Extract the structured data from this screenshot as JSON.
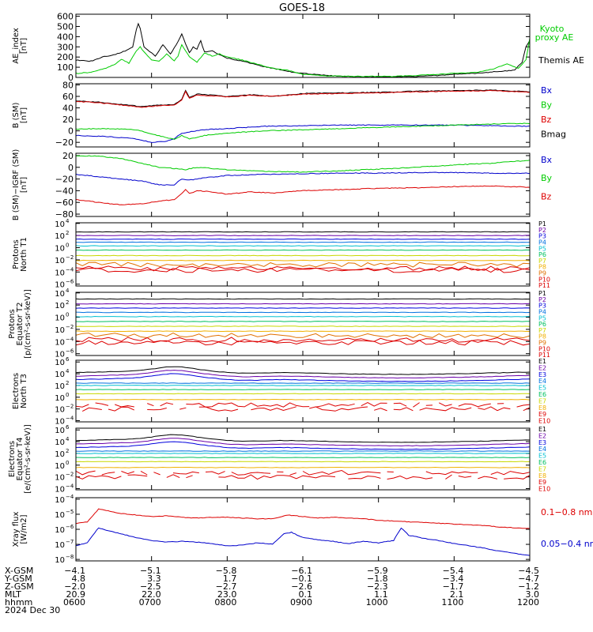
{
  "title": "GOES-18",
  "chart_data": [
    {
      "type": "line",
      "id": "ae",
      "ylabel": [
        "AE_index",
        "[nT]"
      ],
      "yticks": [
        "600",
        "500",
        "400",
        "300",
        "200",
        "100",
        "0"
      ],
      "ylim": [
        0,
        620
      ],
      "legend": [
        {
          "label": "Kyoto",
          "color": "#00cc00"
        },
        {
          "label": "proxy AE",
          "color": "#00cc00"
        },
        {
          "label": "Themis AE",
          "color": "#000000"
        }
      ],
      "series": [
        {
          "name": "Themis AE",
          "color": "#000000",
          "x": [
            6.0,
            6.2,
            6.35,
            6.5,
            6.65,
            6.75,
            6.82,
            6.85,
            6.9,
            7.0,
            7.05,
            7.15,
            7.25,
            7.35,
            7.4,
            7.45,
            7.5,
            7.55,
            7.6,
            7.65,
            7.7,
            7.8,
            7.9,
            8.0,
            8.2,
            8.4,
            8.6,
            8.8,
            9.0,
            9.3,
            9.6,
            9.9,
            10.2,
            10.5,
            10.8,
            11.0,
            11.3,
            11.6,
            11.8,
            11.9,
            11.95,
            12.0
          ],
          "y": [
            170,
            160,
            200,
            220,
            260,
            300,
            540,
            480,
            300,
            240,
            210,
            320,
            230,
            350,
            430,
            330,
            240,
            300,
            280,
            360,
            250,
            260,
            220,
            190,
            160,
            120,
            90,
            60,
            40,
            20,
            10,
            5,
            5,
            10,
            20,
            30,
            40,
            60,
            70,
            150,
            300,
            360
          ]
        },
        {
          "name": "Kyoto proxy AE",
          "color": "#00cc00",
          "x": [
            6.0,
            6.2,
            6.35,
            6.5,
            6.6,
            6.7,
            6.8,
            6.85,
            6.9,
            7.0,
            7.1,
            7.2,
            7.3,
            7.35,
            7.4,
            7.5,
            7.6,
            7.7,
            7.8,
            7.9,
            8.0,
            8.2,
            8.4,
            8.6,
            8.8,
            9.0,
            9.3,
            9.6,
            9.9,
            10.2,
            10.5,
            10.8,
            11.0,
            11.3,
            11.5,
            11.7,
            11.85,
            11.95,
            12.0
          ],
          "y": [
            40,
            50,
            80,
            120,
            180,
            140,
            260,
            300,
            250,
            170,
            160,
            230,
            160,
            210,
            320,
            200,
            150,
            240,
            210,
            230,
            200,
            170,
            130,
            90,
            70,
            30,
            15,
            10,
            10,
            10,
            20,
            30,
            40,
            50,
            80,
            130,
            90,
            170,
            380
          ]
        }
      ]
    },
    {
      "type": "line",
      "id": "bsm",
      "ylabel": [
        "B (SM)",
        "[nT]"
      ],
      "yticks": [
        "80",
        "60",
        "40",
        "20",
        "0",
        "−20"
      ],
      "ylim": [
        -28,
        82
      ],
      "legend": [
        {
          "label": "Bx",
          "color": "#0000cc"
        },
        {
          "label": "By",
          "color": "#00cc00"
        },
        {
          "label": "Bz",
          "color": "#dd0000"
        },
        {
          "label": "Bmag",
          "color": "#000000"
        }
      ],
      "series": [
        {
          "name": "Bmag",
          "color": "#000000",
          "x": [
            6.0,
            6.3,
            6.6,
            6.9,
            7.1,
            7.3,
            7.4,
            7.45,
            7.5,
            7.6,
            7.8,
            8.0,
            8.3,
            8.6,
            9.0,
            9.5,
            10.0,
            10.5,
            11.0,
            11.5,
            12.0
          ],
          "y": [
            52,
            50,
            46,
            42,
            45,
            46,
            55,
            70,
            58,
            64,
            62,
            60,
            63,
            60,
            65,
            66,
            67,
            69,
            70,
            71,
            68
          ]
        },
        {
          "name": "Bz",
          "color": "#dd0000",
          "x": [
            6.0,
            6.3,
            6.6,
            6.9,
            7.1,
            7.3,
            7.4,
            7.45,
            7.5,
            7.6,
            7.8,
            8.0,
            8.3,
            8.6,
            9.0,
            9.5,
            10.0,
            10.5,
            11.0,
            11.5,
            12.0
          ],
          "y": [
            51,
            49,
            45,
            41,
            44,
            45,
            53,
            68,
            57,
            62,
            61,
            59,
            62,
            60,
            64,
            65,
            66,
            68,
            69,
            70,
            67
          ]
        },
        {
          "name": "Bx",
          "color": "#0000cc",
          "x": [
            6.0,
            6.4,
            6.8,
            7.0,
            7.2,
            7.3,
            7.4,
            7.5,
            7.7,
            8.0,
            8.5,
            9.0,
            9.5,
            10.0,
            10.5,
            11.0,
            11.5,
            12.0
          ],
          "y": [
            -8,
            -10,
            -14,
            -20,
            -18,
            -14,
            -4,
            -2,
            2,
            4,
            8,
            9,
            10,
            10,
            10,
            10,
            9,
            8
          ]
        },
        {
          "name": "By",
          "color": "#00cc00",
          "x": [
            6.0,
            6.4,
            6.8,
            7.0,
            7.2,
            7.3,
            7.4,
            7.5,
            7.7,
            8.0,
            8.5,
            9.0,
            9.5,
            10.0,
            10.5,
            11.0,
            11.5,
            12.0
          ],
          "y": [
            3,
            4,
            2,
            -5,
            -12,
            -15,
            -8,
            -14,
            -8,
            -4,
            0,
            2,
            4,
            6,
            8,
            10,
            12,
            13
          ]
        }
      ]
    },
    {
      "type": "line",
      "id": "bigrf",
      "ylabel": [
        "B (SM)−IGRF (SM)",
        "[nT]"
      ],
      "yticks": [
        "20",
        "0",
        "−20",
        "−40",
        "−60",
        "−80"
      ],
      "ylim": [
        -84,
        24
      ],
      "legend": [
        {
          "label": "Bx",
          "color": "#0000cc"
        },
        {
          "label": "By",
          "color": "#00cc00"
        },
        {
          "label": "Bz",
          "color": "#dd0000"
        }
      ],
      "series": [
        {
          "name": "By",
          "color": "#00cc00",
          "x": [
            6.0,
            6.3,
            6.6,
            6.9,
            7.1,
            7.3,
            7.45,
            7.6,
            7.8,
            8.0,
            8.5,
            9.0,
            9.5,
            10.0,
            10.5,
            11.0,
            11.5,
            12.0
          ],
          "y": [
            20,
            19,
            15,
            6,
            0,
            -2,
            -4,
            0,
            -2,
            -4,
            -7,
            -8,
            -6,
            -3,
            0,
            4,
            7,
            12
          ]
        },
        {
          "name": "Bx",
          "color": "#0000cc",
          "x": [
            6.0,
            6.3,
            6.6,
            6.9,
            7.1,
            7.3,
            7.4,
            7.5,
            7.7,
            8.0,
            8.5,
            9.0,
            9.5,
            10.0,
            10.5,
            11.0,
            11.5,
            12.0
          ],
          "y": [
            -12,
            -16,
            -20,
            -24,
            -30,
            -30,
            -20,
            -22,
            -18,
            -14,
            -12,
            -11,
            -10,
            -10,
            -9,
            -9,
            -10,
            -10
          ]
        },
        {
          "name": "Bz",
          "color": "#dd0000",
          "x": [
            6.0,
            6.3,
            6.6,
            6.9,
            7.1,
            7.3,
            7.4,
            7.45,
            7.5,
            7.6,
            7.8,
            8.0,
            8.3,
            8.6,
            9.0,
            9.5,
            10.0,
            10.5,
            11.0,
            11.5,
            12.0
          ],
          "y": [
            -55,
            -60,
            -64,
            -62,
            -58,
            -55,
            -45,
            -38,
            -45,
            -40,
            -42,
            -46,
            -42,
            -44,
            -40,
            -38,
            -36,
            -35,
            -33,
            -32,
            -34
          ]
        }
      ]
    },
    {
      "type": "line",
      "id": "pn",
      "log": true,
      "ylabel": [
        "Protons",
        "North T1"
      ],
      "ylim_exp": [
        -6.3,
        4.1
      ],
      "yticks_exp": [
        4,
        2,
        0,
        -2,
        -4,
        -6
      ],
      "legend": [
        {
          "label": "P1",
          "color": "#000000"
        },
        {
          "label": "P2",
          "color": "#6a00a8"
        },
        {
          "label": "P3",
          "color": "#0000dd"
        },
        {
          "label": "P4",
          "color": "#0070e0"
        },
        {
          "label": "P5",
          "color": "#00c0d0"
        },
        {
          "label": "P6",
          "color": "#00c060"
        },
        {
          "label": "P7",
          "color": "#c8d800"
        },
        {
          "label": "P8",
          "color": "#f0b000"
        },
        {
          "label": "P9",
          "color": "#e07000"
        },
        {
          "label": "P10",
          "color": "#dd0000"
        },
        {
          "label": "P11",
          "color": "#dd0000"
        }
      ],
      "levels": [
        2.6,
        2.0,
        1.4,
        0.9,
        0.3,
        -0.4,
        -1.3,
        -2.1,
        -2.8,
        -3.4,
        -3.7
      ],
      "noisy_from": 8
    },
    {
      "type": "line",
      "id": "pe",
      "log": true,
      "ylabel": [
        "Protons",
        "Equator T2",
        "[p/(cm²-s-sr-keV)]"
      ],
      "ylim_exp": [
        -6.3,
        4.1
      ],
      "yticks_exp": [
        4,
        2,
        0,
        -2,
        -4,
        -6
      ],
      "legend": [
        {
          "label": "P1",
          "color": "#000000"
        },
        {
          "label": "P2",
          "color": "#6a00a8"
        },
        {
          "label": "P3",
          "color": "#0000dd"
        },
        {
          "label": "P4",
          "color": "#0070e0"
        },
        {
          "label": "P5",
          "color": "#00c0d0"
        },
        {
          "label": "P6",
          "color": "#00c060"
        },
        {
          "label": "P7",
          "color": "#c8d800"
        },
        {
          "label": "P8",
          "color": "#f0b000"
        },
        {
          "label": "P9",
          "color": "#e07000"
        },
        {
          "label": "P10",
          "color": "#dd0000"
        },
        {
          "label": "P11",
          "color": "#dd0000"
        }
      ],
      "levels": [
        3.0,
        2.2,
        1.5,
        0.8,
        0.1,
        -0.7,
        -1.5,
        -2.3,
        -3.0,
        -3.7,
        -4.2
      ],
      "noisy_from": 8
    },
    {
      "type": "line",
      "id": "en",
      "log": true,
      "ylabel": [
        "Electrons",
        "North T3"
      ],
      "ylim_exp": [
        -4.2,
        6.3
      ],
      "yticks_exp": [
        6,
        4,
        2,
        0,
        -2,
        -4
      ],
      "legend": [
        {
          "label": "E1",
          "color": "#000000"
        },
        {
          "label": "E2",
          "color": "#6a00a8"
        },
        {
          "label": "E3",
          "color": "#0000dd"
        },
        {
          "label": "E4",
          "color": "#0070e0"
        },
        {
          "label": "E5",
          "color": "#00c0d0"
        },
        {
          "label": "E6",
          "color": "#00c060"
        },
        {
          "label": "E7",
          "color": "#c8d800"
        },
        {
          "label": "E8",
          "color": "#f0b000"
        },
        {
          "label": "E9",
          "color": "#dd0000"
        },
        {
          "label": "E10",
          "color": "#dd0000"
        }
      ],
      "levels": [
        4.2,
        3.6,
        3.0,
        2.4,
        2.0,
        1.3,
        0.6,
        -0.4,
        -1.3,
        -2.0
      ],
      "noisy_from": 8
    },
    {
      "type": "line",
      "id": "ee",
      "log": true,
      "ylabel": [
        "Electrons",
        "Equator T4",
        "[e/(cm²-s-sr-keV)]"
      ],
      "ylim_exp": [
        -4.2,
        6.3
      ],
      "yticks_exp": [
        6,
        4,
        2,
        0,
        -2,
        -4
      ],
      "legend": [
        {
          "label": "E1",
          "color": "#000000"
        },
        {
          "label": "E2",
          "color": "#6a00a8"
        },
        {
          "label": "E3",
          "color": "#0000dd"
        },
        {
          "label": "E4",
          "color": "#0070e0"
        },
        {
          "label": "E5",
          "color": "#00c0d0"
        },
        {
          "label": "E6",
          "color": "#00c060"
        },
        {
          "label": "E7",
          "color": "#c8d800"
        },
        {
          "label": "E8",
          "color": "#f0b000"
        },
        {
          "label": "E9",
          "color": "#dd0000"
        },
        {
          "label": "E10",
          "color": "#dd0000"
        }
      ],
      "levels": [
        4.2,
        3.6,
        3.0,
        2.4,
        2.0,
        1.3,
        0.6,
        -0.4,
        -1.3,
        -2.0
      ],
      "noisy_from": 8
    },
    {
      "type": "line",
      "id": "xray",
      "log": true,
      "ylabel": [
        "Xray  flux",
        "[W/m2]"
      ],
      "ylim_exp": [
        -8.1,
        -3.9
      ],
      "yticks_exp": [
        -4,
        -5,
        -6,
        -7,
        -8
      ],
      "legend": [
        {
          "label": "0.1−0.8 nm",
          "color": "#dd0000"
        },
        {
          "label": "0.05−0.4 nm",
          "color": "#0000cc"
        }
      ],
      "series": [
        {
          "name": "0.1−0.8 nm",
          "color": "#dd0000",
          "x": [
            6.0,
            6.15,
            6.3,
            6.4,
            6.6,
            6.8,
            7.0,
            7.2,
            7.4,
            7.6,
            7.8,
            8.0,
            8.2,
            8.4,
            8.6,
            8.8,
            9.0,
            9.2,
            9.4,
            9.6,
            9.8,
            10.0,
            10.2,
            10.4,
            10.6,
            10.8,
            11.0,
            11.2,
            11.4,
            11.6,
            11.8,
            12.0
          ],
          "y": [
            -5.6,
            -5.5,
            -4.65,
            -4.75,
            -4.95,
            -5.05,
            -5.15,
            -5.1,
            -5.2,
            -5.25,
            -5.2,
            -5.2,
            -5.25,
            -5.3,
            -5.3,
            -5.05,
            -5.15,
            -5.25,
            -5.2,
            -5.25,
            -5.3,
            -5.4,
            -5.45,
            -5.5,
            -5.55,
            -5.6,
            -5.65,
            -5.7,
            -5.75,
            -5.85,
            -5.9,
            -5.95
          ]
        },
        {
          "name": "0.05−0.4 nm",
          "color": "#0000cc",
          "x": [
            6.0,
            6.15,
            6.3,
            6.4,
            6.6,
            6.8,
            7.0,
            7.2,
            7.4,
            7.6,
            7.8,
            8.0,
            8.2,
            8.4,
            8.6,
            8.75,
            8.85,
            9.0,
            9.2,
            9.4,
            9.6,
            9.8,
            10.0,
            10.2,
            10.3,
            10.4,
            10.6,
            10.8,
            11.0,
            11.2,
            11.4,
            11.6,
            11.8,
            12.0
          ],
          "y": [
            -7.1,
            -6.9,
            -5.9,
            -6.05,
            -6.3,
            -6.55,
            -6.75,
            -6.85,
            -6.8,
            -6.85,
            -6.95,
            -7.1,
            -7.05,
            -6.9,
            -7.0,
            -6.3,
            -6.2,
            -6.55,
            -6.7,
            -6.8,
            -6.95,
            -6.8,
            -6.9,
            -6.75,
            -5.9,
            -6.4,
            -6.6,
            -6.75,
            -6.95,
            -7.1,
            -7.25,
            -7.45,
            -7.6,
            -7.75
          ]
        }
      ]
    }
  ],
  "footer": {
    "rows": [
      {
        "label": "X-GSM",
        "values": [
          "−4.1",
          "−5.1",
          "−5.8",
          "−6.1",
          "−5.9",
          "−5.4",
          "−4.5"
        ]
      },
      {
        "label": "Y-GSM",
        "values": [
          "4.8",
          "3.3",
          "1.7",
          "−0.1",
          "−1.8",
          "−3.4",
          "−4.7"
        ]
      },
      {
        "label": "Z-GSM",
        "values": [
          "−2.0",
          "−2.5",
          "−2.7",
          "−2.6",
          "−2.3",
          "−1.7",
          "−1.2"
        ]
      },
      {
        "label": "MLT",
        "values": [
          "20.9",
          "22.0",
          "23.0",
          "0.1",
          "1.1",
          "2.1",
          "3.0"
        ]
      },
      {
        "label": "hhmm",
        "values": [
          "0600",
          "0700",
          "0800",
          "0900",
          "1000",
          "1100",
          "1200"
        ]
      }
    ],
    "date": "2024 Dec 30"
  }
}
